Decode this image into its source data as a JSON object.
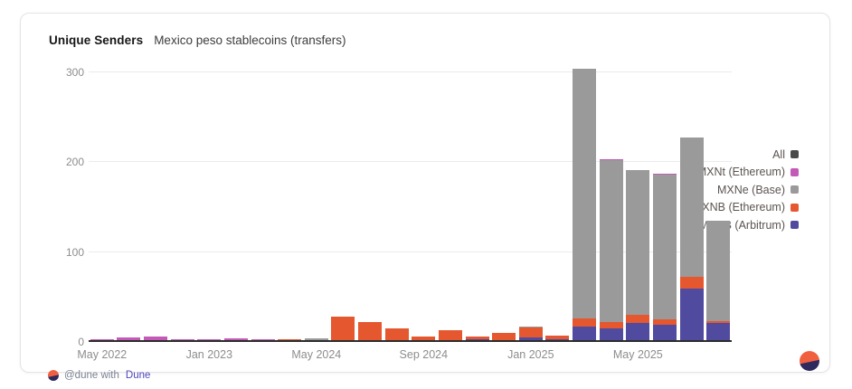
{
  "header": {
    "title": "Unique Senders",
    "subtitle": "Mexico peso stablecoins (transfers)"
  },
  "footer": {
    "attribution_prefix": "@dune with",
    "brand_link": "Dune"
  },
  "colors": {
    "all": "#4a4a4a",
    "mxnt_ethereum": "#c35ab8",
    "mxne_base": "#9a9a9a",
    "mxnb_ethereum": "#e5572f",
    "mxnb_arbitrum": "#504b9e",
    "logo_orange": "#f0603f",
    "logo_navy": "#2f2a5e",
    "link_purple": "#4f46bd"
  },
  "chart_data": {
    "type": "bar",
    "stacked": true,
    "title": "Unique Senders",
    "subtitle": "Mexico peso stablecoins (transfers)",
    "ylabel": "",
    "xlabel": "",
    "ylim": [
      0,
      300
    ],
    "yticks": [
      0,
      100,
      200,
      300
    ],
    "grid": true,
    "legend_position": "right",
    "num_bars": 24,
    "x_tick_labels": [
      {
        "index": 0,
        "label": "May 2022"
      },
      {
        "index": 4,
        "label": "Jan 2023"
      },
      {
        "index": 8,
        "label": "May 2024"
      },
      {
        "index": 12,
        "label": "Sep 2024"
      },
      {
        "index": 16,
        "label": "Jan 2025"
      },
      {
        "index": 20,
        "label": "May 2025"
      }
    ],
    "series": [
      {
        "name": "MXNB (Arbitrum)",
        "color": "#504b9e",
        "values": [
          0,
          0,
          0,
          0,
          0,
          0,
          0,
          0,
          0,
          0,
          0,
          0,
          0,
          0,
          1,
          0,
          3,
          1,
          15,
          13,
          19,
          17,
          57,
          19
        ]
      },
      {
        "name": "MXNB (Ethereum)",
        "color": "#e5572f",
        "values": [
          0,
          0,
          0,
          0,
          0,
          0,
          0,
          1,
          0,
          26,
          20,
          13,
          4,
          11,
          3,
          8,
          11,
          4,
          9,
          7,
          9,
          6,
          13,
          2
        ]
      },
      {
        "name": "MXNe (Base)",
        "color": "#9a9a9a",
        "values": [
          0,
          0,
          0,
          0,
          0,
          0,
          0,
          0,
          2,
          0,
          0,
          0,
          0,
          0,
          0,
          0,
          1,
          0,
          278,
          180,
          161,
          161,
          156,
          112
        ]
      },
      {
        "name": "MXNt (Ethereum)",
        "color": "#c35ab8",
        "values": [
          1,
          3,
          4,
          1,
          1,
          2,
          1,
          0,
          0,
          0,
          0,
          0,
          0,
          0,
          0,
          0,
          0,
          0,
          0,
          1,
          0,
          1,
          0,
          0
        ]
      }
    ],
    "legend": [
      {
        "label": "All",
        "color": "#4a4a4a"
      },
      {
        "label": "MXNt (Ethereum)",
        "color": "#c35ab8"
      },
      {
        "label": "MXNe (Base)",
        "color": "#9a9a9a"
      },
      {
        "label": "MXNB (Ethereum)",
        "color": "#e5572f"
      },
      {
        "label": "MXNB (Arbitrum)",
        "color": "#504b9e"
      }
    ]
  }
}
